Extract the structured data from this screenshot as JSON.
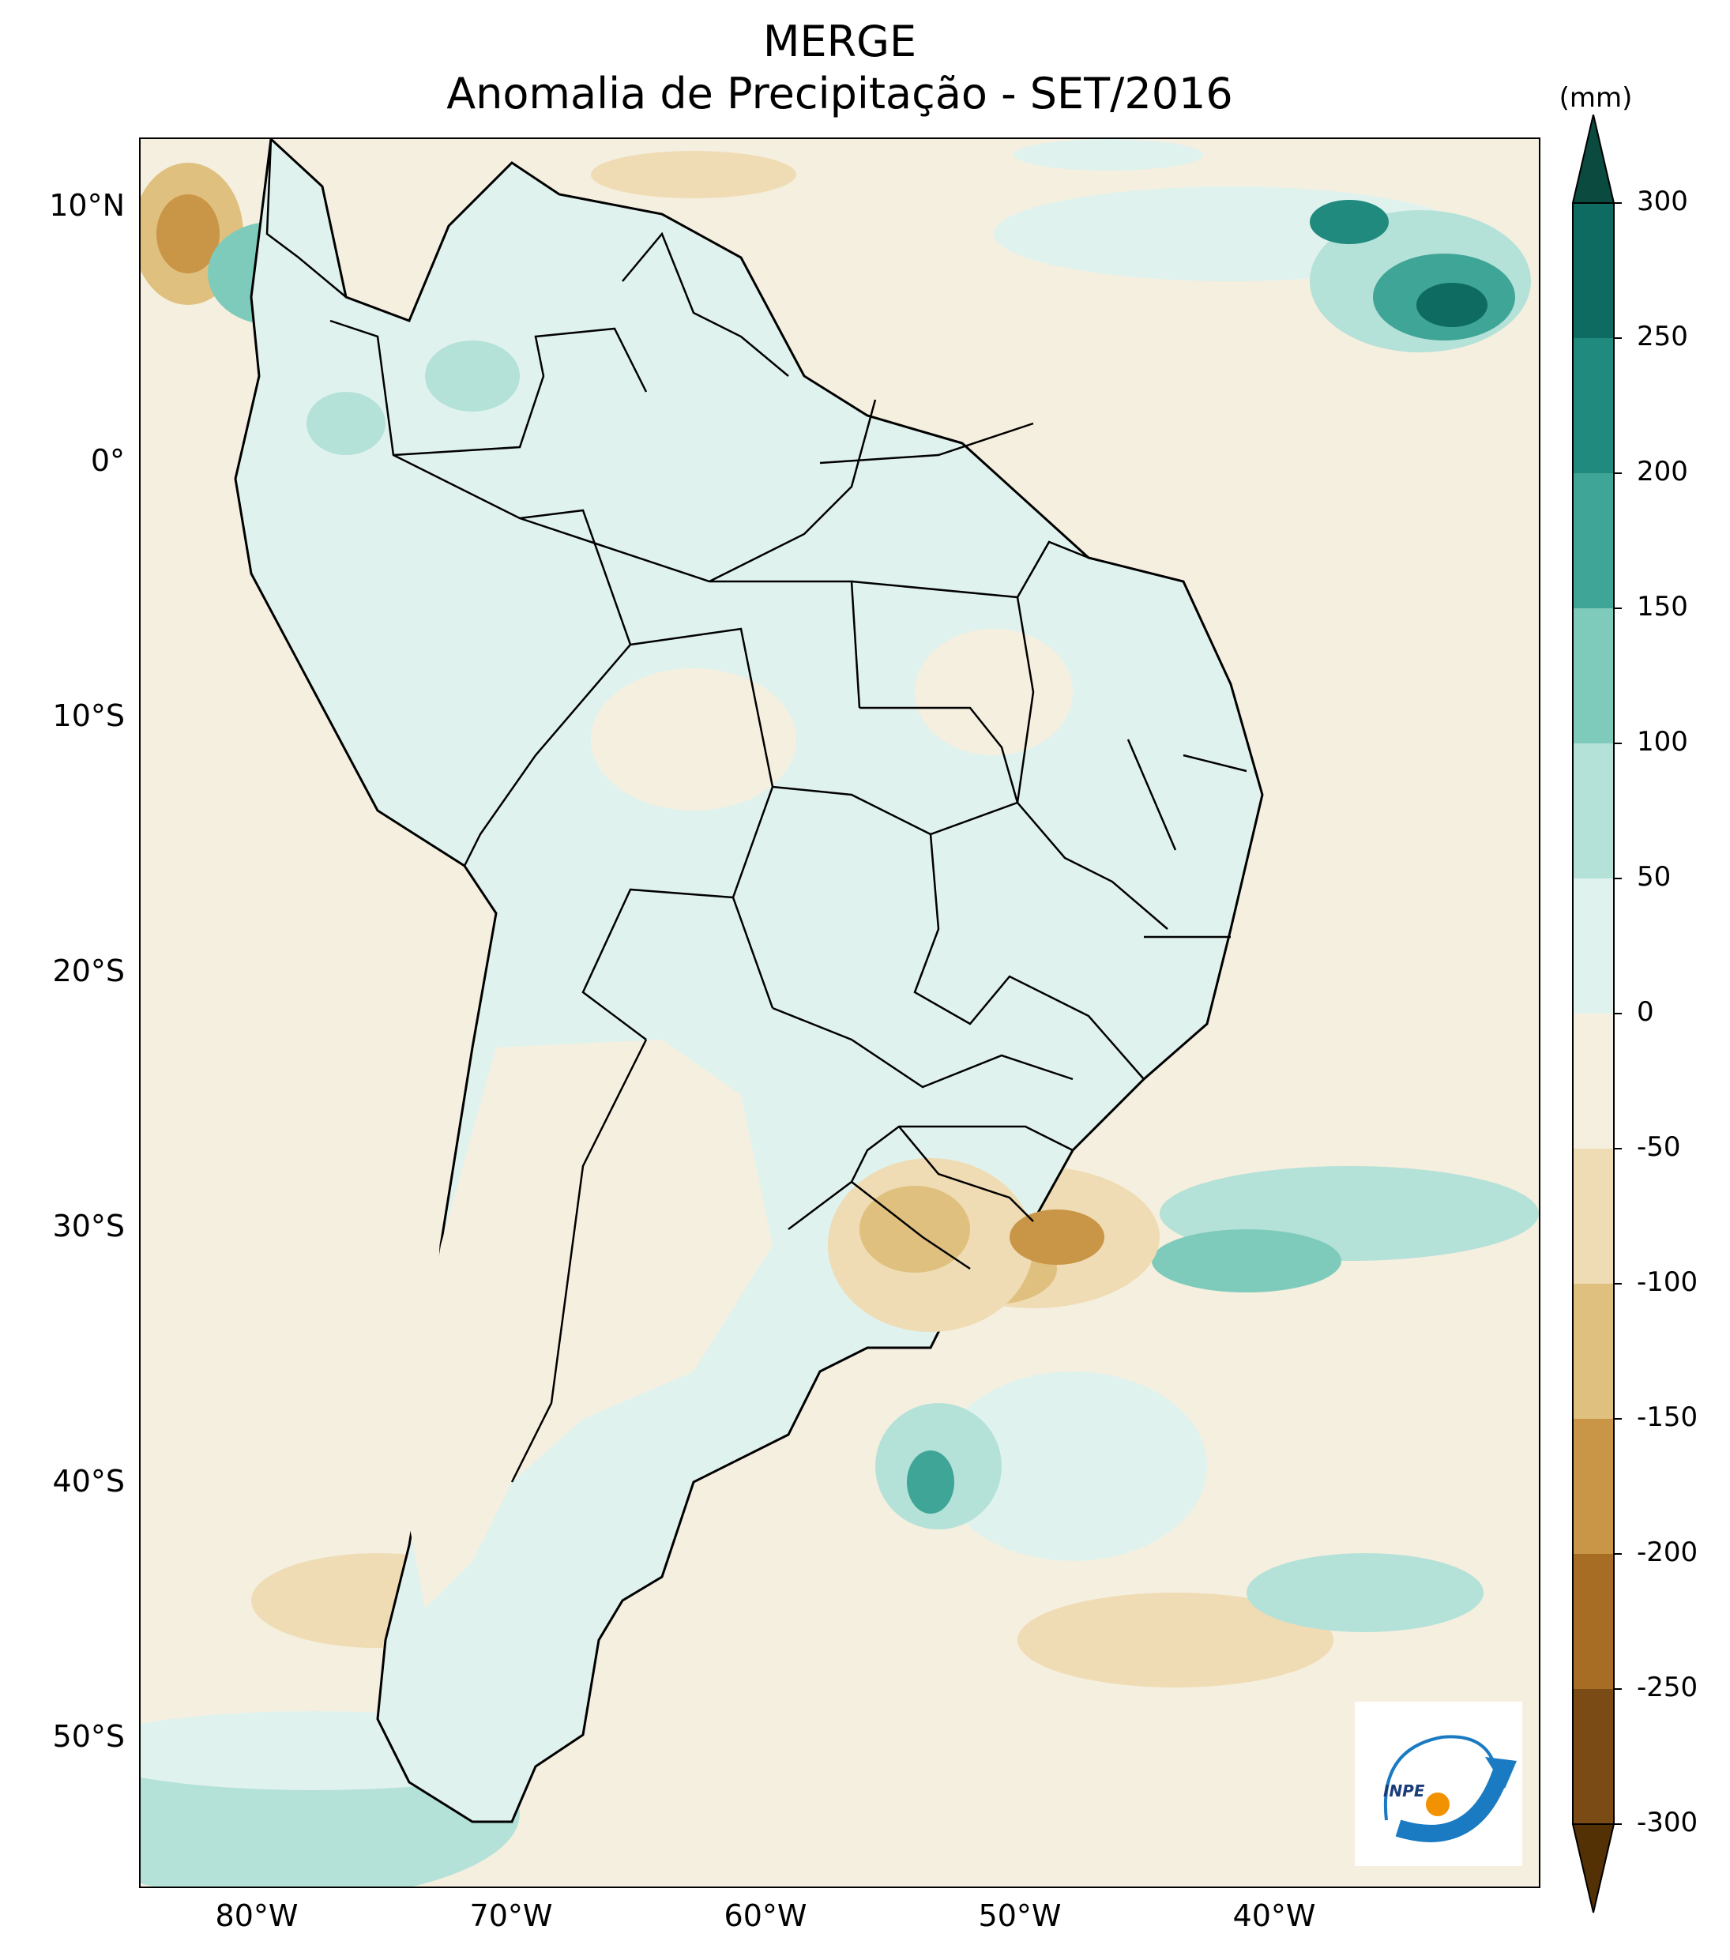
{
  "title": {
    "line1": "MERGE",
    "line2": "Anomalia de Precipitação - SET/2016"
  },
  "axes": {
    "lat_labels": [
      "10°N",
      "0°",
      "10°S",
      "20°S",
      "30°S",
      "40°S",
      "50°S"
    ],
    "lon_labels": [
      "80°W",
      "70°W",
      "60°W",
      "50°W",
      "40°W"
    ]
  },
  "colorbar": {
    "unit": "(mm)",
    "tick_labels": [
      "300",
      "250",
      "200",
      "150",
      "100",
      "50",
      "0",
      "-50",
      "-100",
      "-150",
      "-200",
      "-250",
      "-300"
    ],
    "colors": [
      "#0a4a3f",
      "#0d6b61",
      "#1f8a7d",
      "#3fa596",
      "#7fcbbb",
      "#b4e1d8",
      "#e0f2ee",
      "#f5efdf",
      "#efdcb4",
      "#dfc07e",
      "#c99547",
      "#a86d24",
      "#7a4b14",
      "#543005"
    ]
  },
  "map": {
    "extent": {
      "lon_min": -85,
      "lon_max": -30,
      "lat_min": -56,
      "lat_max": 12.5
    },
    "ocean_color": "#f5efdf",
    "boundary_color": "#000000"
  },
  "logo": {
    "text": "INPE",
    "accent_orange": "#f39200",
    "accent_blue": "#1a7ac2"
  }
}
